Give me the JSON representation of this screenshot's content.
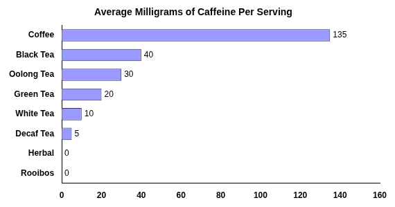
{
  "chart_data": {
    "type": "bar",
    "orientation": "horizontal",
    "title": "Average Milligrams of Caffeine Per Serving",
    "categories": [
      "Coffee",
      "Black Tea",
      "Oolong Tea",
      "Green Tea",
      "White Tea",
      "Decaf Tea",
      "Herbal",
      "Rooibos"
    ],
    "values": [
      135,
      40,
      30,
      20,
      10,
      5,
      0,
      0
    ],
    "color": "#9999ff",
    "xlim": [
      0,
      160
    ],
    "xticks": [
      0,
      20,
      40,
      60,
      80,
      100,
      120,
      140,
      160
    ],
    "grid": false,
    "data_labels": true
  }
}
